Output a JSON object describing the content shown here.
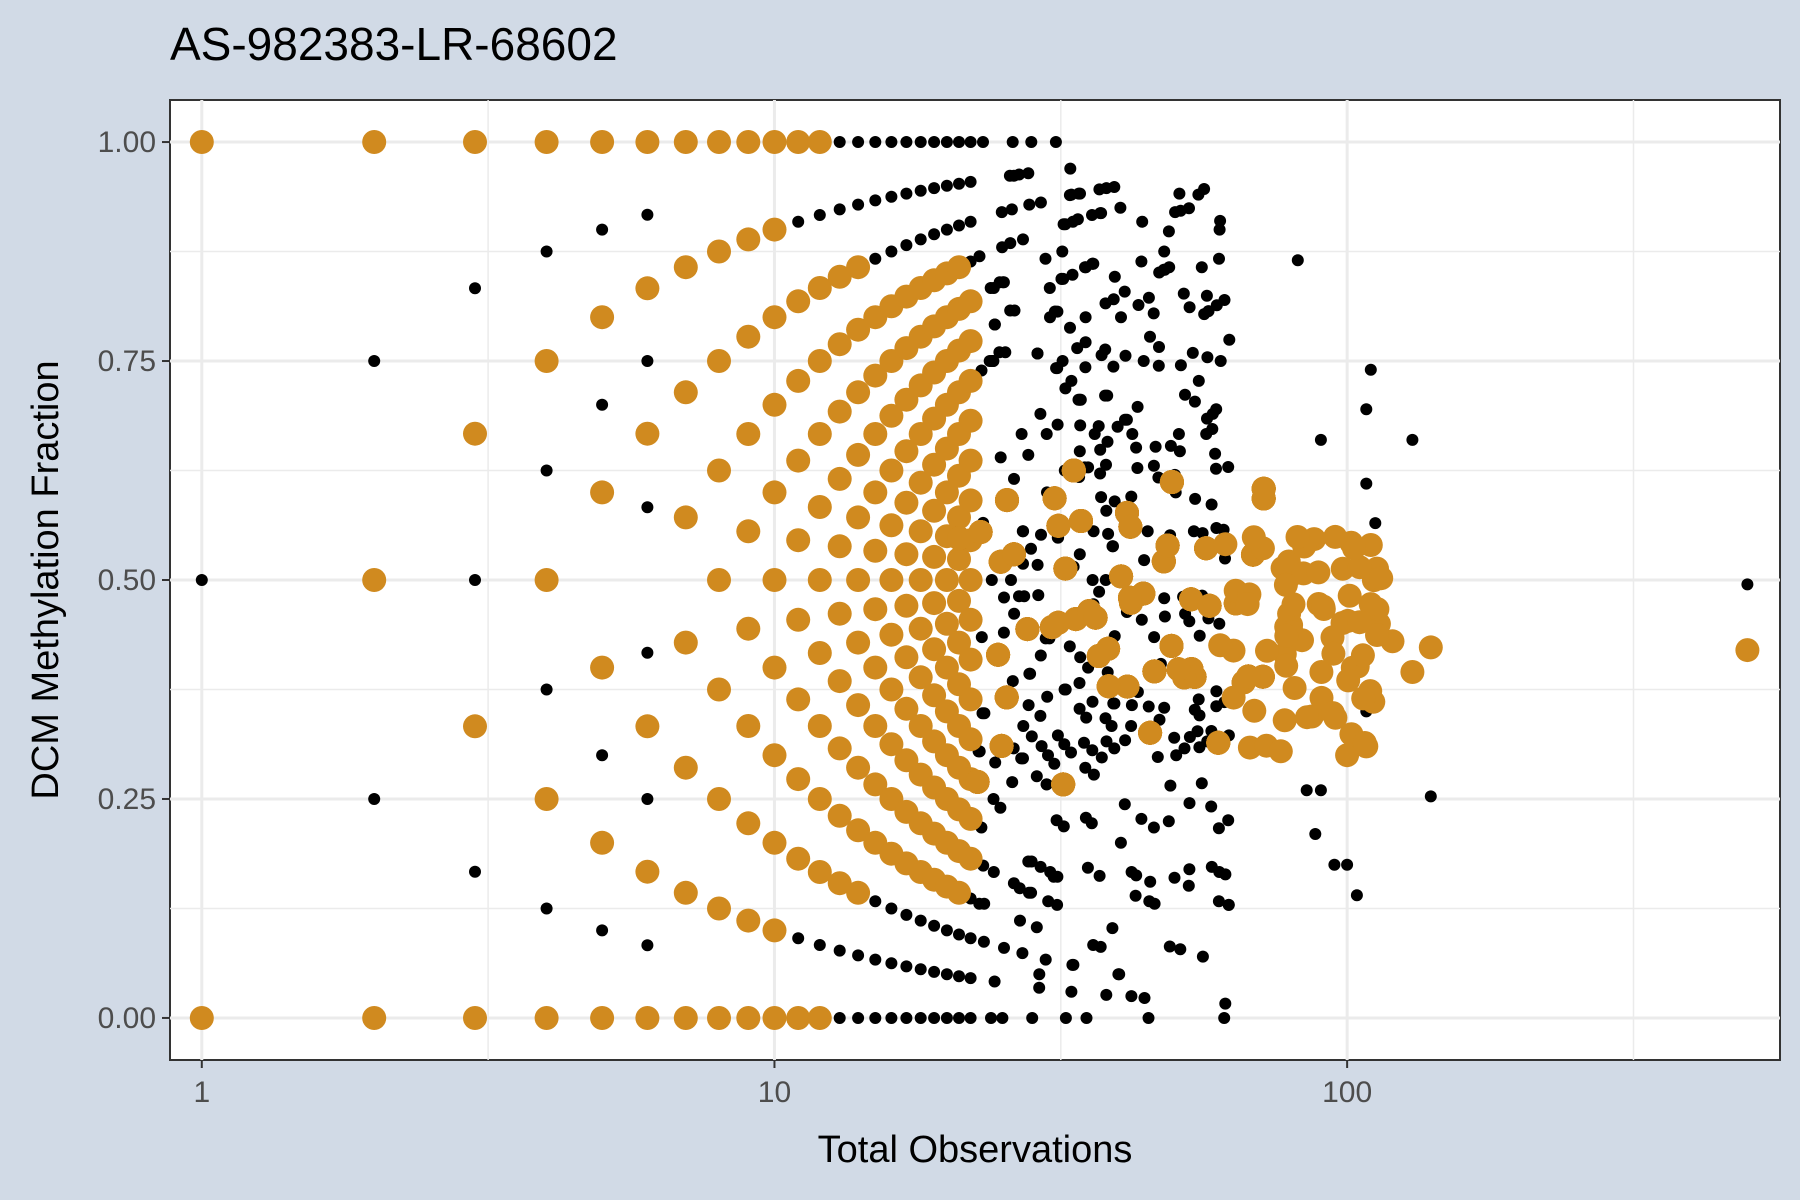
{
  "chart_data": {
    "type": "scatter",
    "title": "AS-982383-LR-68602",
    "xlabel": "Total Observations",
    "ylabel": "DCM Methylation Fraction",
    "x_scale": "log10",
    "xlim": [
      0.88,
      570
    ],
    "ylim": [
      -0.048,
      1.048
    ],
    "x_ticks": [
      1,
      10,
      100
    ],
    "x_tick_labels": [
      "1",
      "10",
      "100"
    ],
    "y_ticks": [
      0,
      0.25,
      0.5,
      0.75,
      1
    ],
    "y_tick_labels": [
      "0.00",
      "0.25",
      "0.50",
      "0.75",
      "1.00"
    ],
    "grid": true,
    "legend": "none",
    "colors": {
      "background": "#d1dae6",
      "panel": "#ffffff",
      "grid": "#ebebeb",
      "series_black": "#000000",
      "series_orange": "#d08a1f"
    },
    "series": [
      {
        "color": "#000000",
        "point_size": "small",
        "points": [
          [
            1,
            0.5
          ],
          [
            2,
            0.75
          ],
          [
            2,
            0.25
          ],
          [
            3,
            0.833
          ],
          [
            3,
            0.5
          ],
          [
            3,
            0.167
          ],
          [
            4,
            0.875
          ],
          [
            4,
            0.625
          ],
          [
            4,
            0.375
          ],
          [
            4,
            0.125
          ],
          [
            5,
            0.9
          ],
          [
            5,
            0.7
          ],
          [
            5,
            0.3
          ],
          [
            5,
            0.1
          ],
          [
            6,
            0.917
          ],
          [
            6,
            0.75
          ],
          [
            6,
            0.583
          ],
          [
            6,
            0.417
          ],
          [
            6,
            0.25
          ],
          [
            6,
            0.083
          ],
          [
            31,
            1.0
          ],
          [
            33,
            0.94
          ],
          [
            55,
            0.94
          ],
          [
            60,
            0.91
          ],
          [
            82,
            0.865
          ],
          [
            110,
            0.74
          ],
          [
            108,
            0.695
          ],
          [
            130,
            0.66
          ],
          [
            90,
            0.66
          ],
          [
            112,
            0.565
          ],
          [
            116,
            0.5
          ],
          [
            108,
            0.61
          ],
          [
            100,
            0.51
          ],
          [
            108,
            0.35
          ],
          [
            112,
            0.355
          ],
          [
            140,
            0.253
          ],
          [
            100,
            0.175
          ],
          [
            104,
            0.14
          ],
          [
            95,
            0.175
          ],
          [
            90,
            0.26
          ],
          [
            88,
            0.21
          ],
          [
            85,
            0.26
          ],
          [
            56,
            0.07
          ],
          [
            42,
            0.025
          ],
          [
            33,
            0.03
          ],
          [
            29,
            0.05
          ],
          [
            25,
            0.0
          ],
          [
            500,
            0.495
          ]
        ]
      },
      {
        "color": "#d08a1f",
        "point_size": "large",
        "points": [
          [
            1,
            1.0
          ],
          [
            1,
            0.0
          ],
          [
            2,
            1.0
          ],
          [
            2,
            0.5
          ],
          [
            2,
            0.0
          ],
          [
            3,
            1.0
          ],
          [
            3,
            0.667
          ],
          [
            3,
            0.333
          ],
          [
            3,
            0.0
          ],
          [
            4,
            1.0
          ],
          [
            4,
            0.75
          ],
          [
            4,
            0.5
          ],
          [
            4,
            0.25
          ],
          [
            4,
            0.0
          ],
          [
            5,
            1.0
          ],
          [
            5,
            0.8
          ],
          [
            5,
            0.6
          ],
          [
            5,
            0.4
          ],
          [
            5,
            0.2
          ],
          [
            5,
            0.0
          ],
          [
            6,
            1.0
          ],
          [
            6,
            0.833
          ],
          [
            6,
            0.667
          ],
          [
            6,
            0.333
          ],
          [
            6,
            0.167
          ],
          [
            6,
            0.0
          ],
          [
            140,
            0.423
          ],
          [
            130,
            0.395
          ],
          [
            120,
            0.43
          ],
          [
            110,
            0.54
          ],
          [
            108,
            0.31
          ],
          [
            100,
            0.3
          ],
          [
            500,
            0.42
          ]
        ]
      }
    ]
  }
}
